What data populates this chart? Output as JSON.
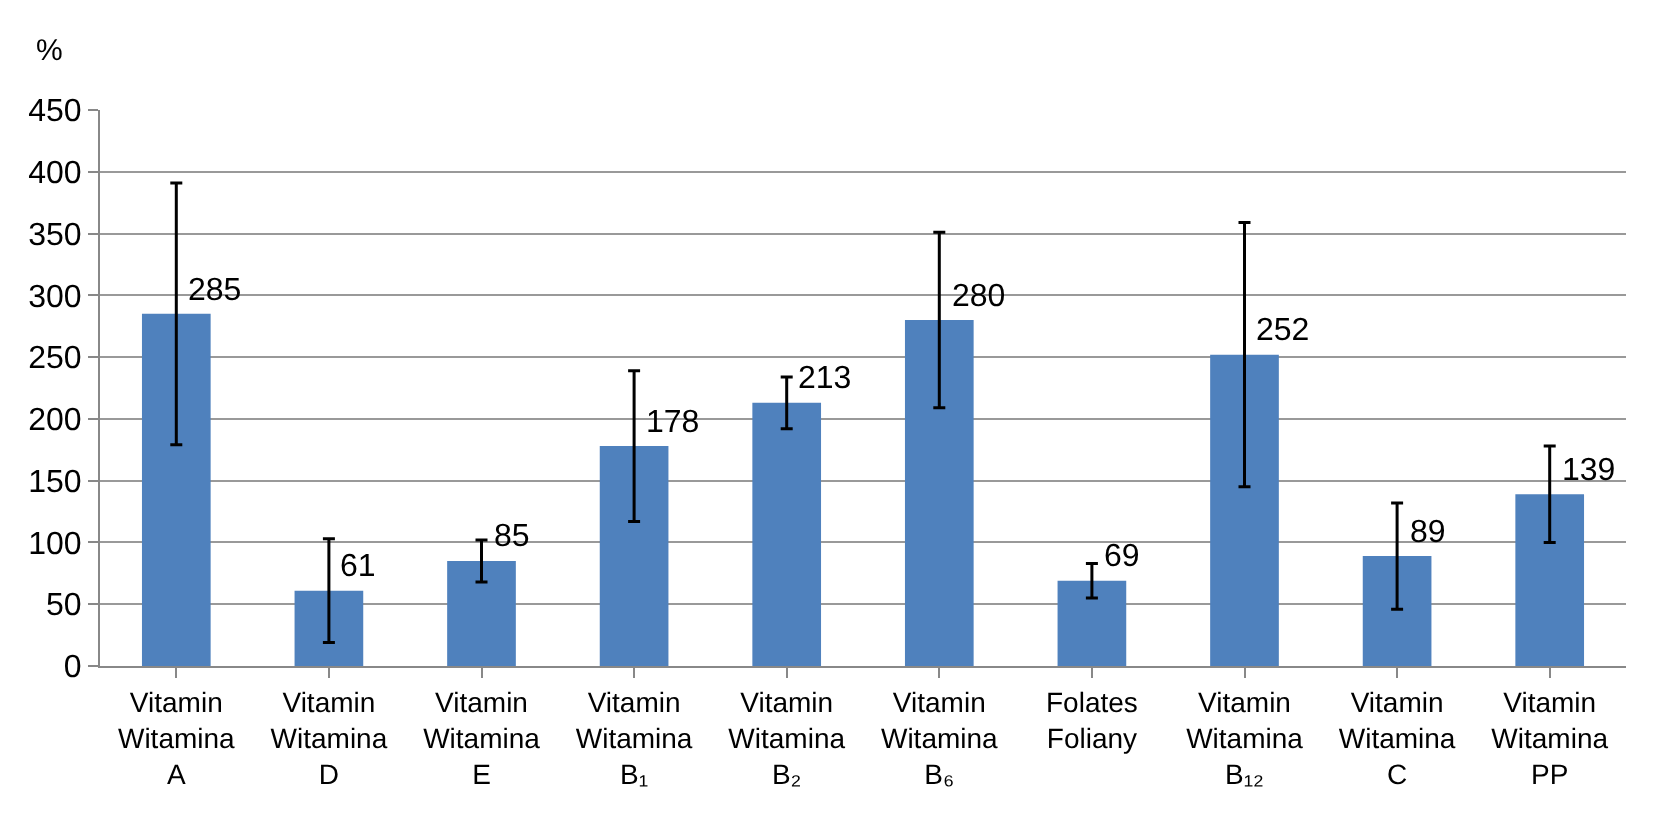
{
  "chart_data": {
    "type": "bar",
    "ylabel": "%",
    "categories": [
      "Vitamin\nWitamina\nA",
      "Vitamin\nWitamina\nD",
      "Vitamin\nWitamina\nE",
      "Vitamin\nWitamina\nB₁",
      "Vitamin\nWitamina\nB₂",
      "Vitamin\nWitamina\nB₆",
      "Folates\nFoliany",
      "Vitamin\nWitamina\nB₁₂",
      "Vitamin\nWitamina\nC",
      "Vitamin\nWitamina\nPP"
    ],
    "values": [
      285,
      61,
      85,
      178,
      213,
      280,
      69,
      252,
      89,
      139
    ],
    "errors": [
      106,
      42,
      17,
      61,
      21,
      71,
      14,
      107,
      43,
      39
    ],
    "color": "#4f81bd",
    "ylim": [
      0,
      450
    ],
    "yticks": [
      0,
      50,
      100,
      150,
      200,
      250,
      300,
      350,
      400,
      450
    ],
    "grid": "y",
    "data_labels": true,
    "legend": false
  }
}
